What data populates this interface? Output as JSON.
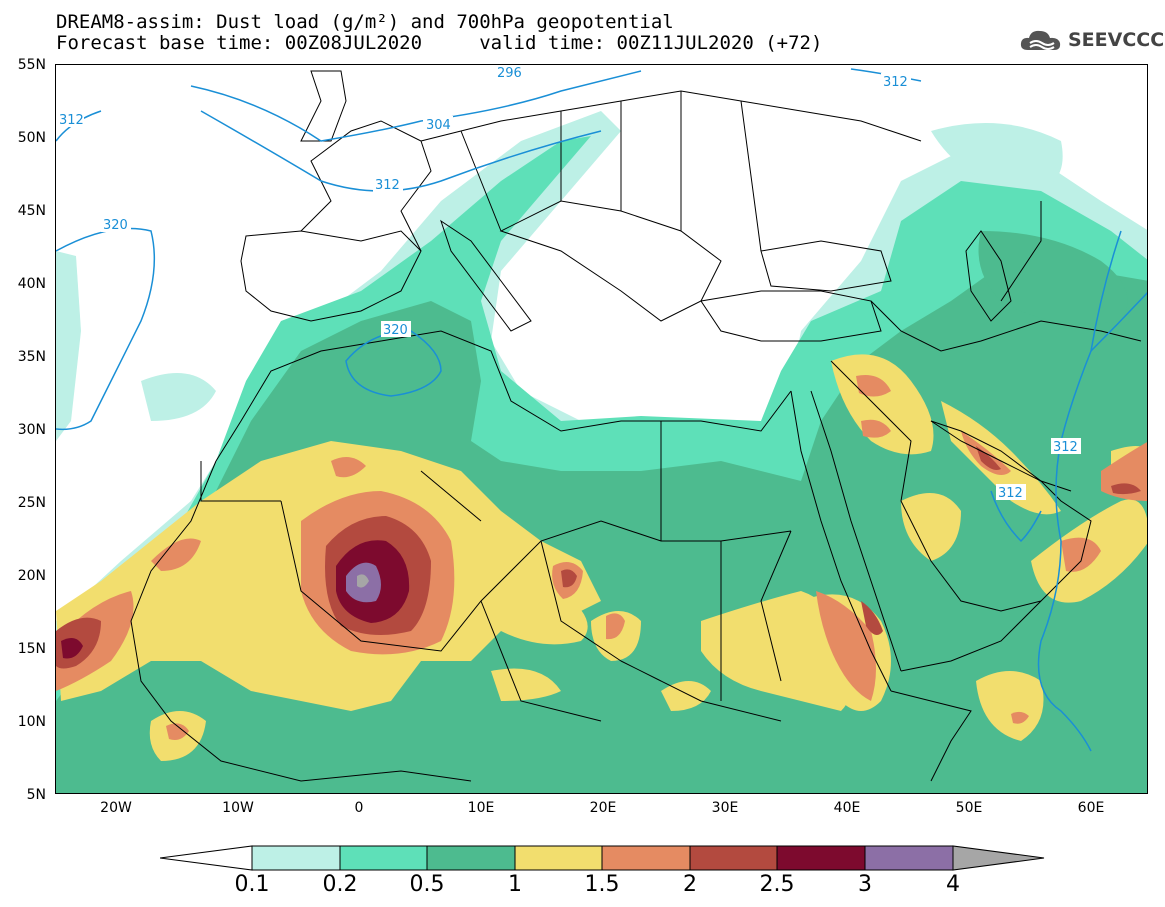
{
  "title": {
    "line1": "DREAM8-assim: Dust load (g/m²) and 700hPa geopotential",
    "line2": "Forecast base time: 00Z08JUL2020     valid time: 00Z11JUL2020 (+72)"
  },
  "logo": {
    "text": "SEEVCCC",
    "icon": "cloud-icon"
  },
  "axes": {
    "lat_labels": [
      "55N",
      "50N",
      "45N",
      "40N",
      "35N",
      "30N",
      "25N",
      "20N",
      "15N",
      "10N",
      "5N"
    ],
    "lon_labels": [
      "20W",
      "10W",
      "0",
      "10E",
      "20E",
      "30E",
      "40E",
      "50E",
      "60E"
    ]
  },
  "contours": {
    "labels": [
      "312",
      "312",
      "312",
      "304",
      "320",
      "320",
      "312",
      "312",
      "296"
    ]
  },
  "colorbar": {
    "labels": [
      "0.1",
      "0.2",
      "0.5",
      "1",
      "1.5",
      "2",
      "2.5",
      "3",
      "4"
    ],
    "colors": [
      "#bdf0e6",
      "#5ee0b8",
      "#4dbb8f",
      "#f2de6e",
      "#e58b62",
      "#b34a3f",
      "#7d0a2e",
      "#8c6fa6",
      "#a6a6a6"
    ]
  },
  "palette": {
    "ocean": "#ffffff",
    "contour_line": "#1a8fd6",
    "border": "#000000"
  }
}
